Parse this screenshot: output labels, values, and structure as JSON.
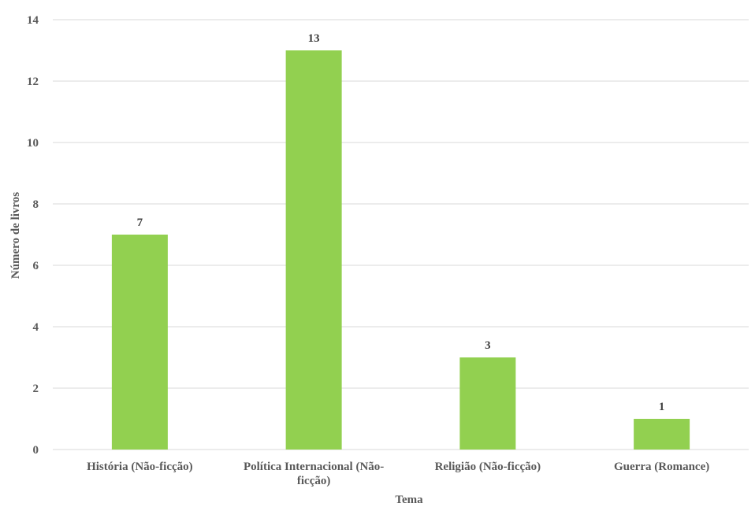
{
  "chart_data": {
    "type": "bar",
    "title": "",
    "xlabel": "Tema",
    "ylabel": "Número de livros",
    "categories": [
      [
        "História (Não-ficção)"
      ],
      [
        "Política Internacional (Não-",
        "ficção)"
      ],
      [
        "Religião (Não-ficção)"
      ],
      [
        "Guerra (Romance)"
      ]
    ],
    "values": [
      7,
      13,
      3,
      1
    ],
    "ylim": [
      0,
      14
    ],
    "yticks": [
      0,
      2,
      4,
      6,
      8,
      10,
      12,
      14
    ],
    "grid": true,
    "legend": "none",
    "bar_color": "#92d050"
  }
}
